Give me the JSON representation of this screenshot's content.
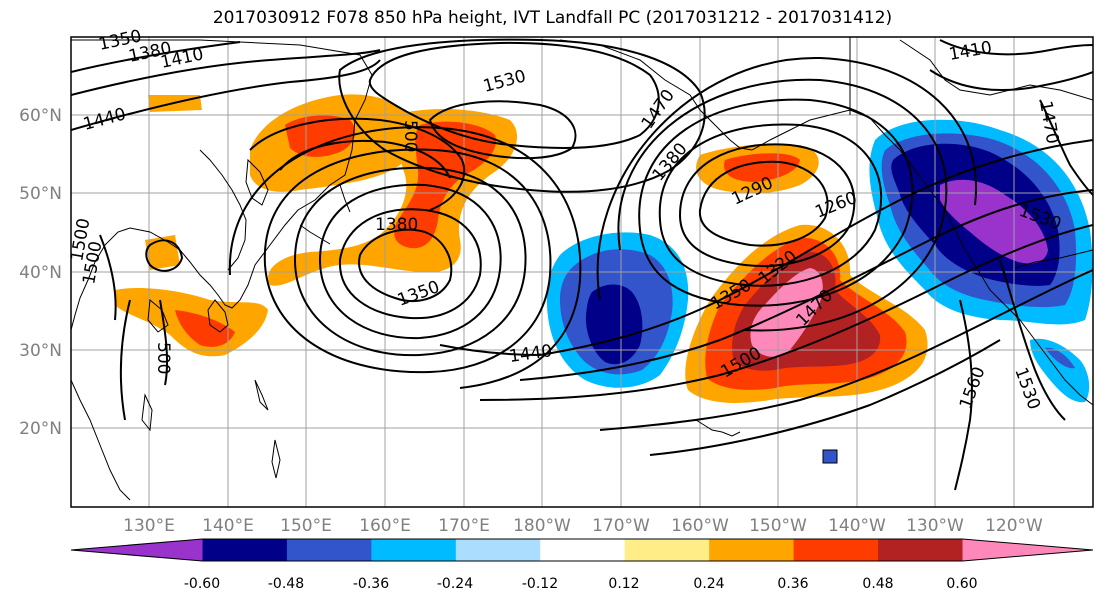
{
  "title": "2017030912 F078 850 hPa height, IVT Landfall PC (2017031212 - 2017031412)",
  "lat_labels": [
    "60°N",
    "50°N",
    "40°N",
    "30°N",
    "20°N"
  ],
  "lon_labels": [
    "130°E",
    "140°E",
    "150°E",
    "160°E",
    "170°E",
    "180°W",
    "170°W",
    "160°W",
    "150°W",
    "140°W",
    "130°W",
    "120°W"
  ],
  "contour_labels": [
    "1350",
    "1380",
    "1410",
    "1440",
    "1530",
    "1470",
    "1380",
    "1290",
    "1260",
    "1320",
    "1350",
    "1470",
    "1500",
    "1440",
    "1380",
    "1350",
    "1500",
    "1560",
    "1530",
    "1410",
    "1470",
    "1530",
    "500",
    "500",
    "1500"
  ],
  "colorbar": {
    "colors": [
      "#9933cc",
      "#000088",
      "#3355cc",
      "#00bbff",
      "#aaddff",
      "#ffffff",
      "#ffee88",
      "#ffa500",
      "#ff3c00",
      "#b22222",
      "#ff88bb"
    ],
    "tick_labels": [
      "-0.60",
      "-0.48",
      "-0.36",
      "-0.24",
      "-0.12",
      "0.12",
      "0.24",
      "0.36",
      "0.48",
      "0.60"
    ]
  }
}
